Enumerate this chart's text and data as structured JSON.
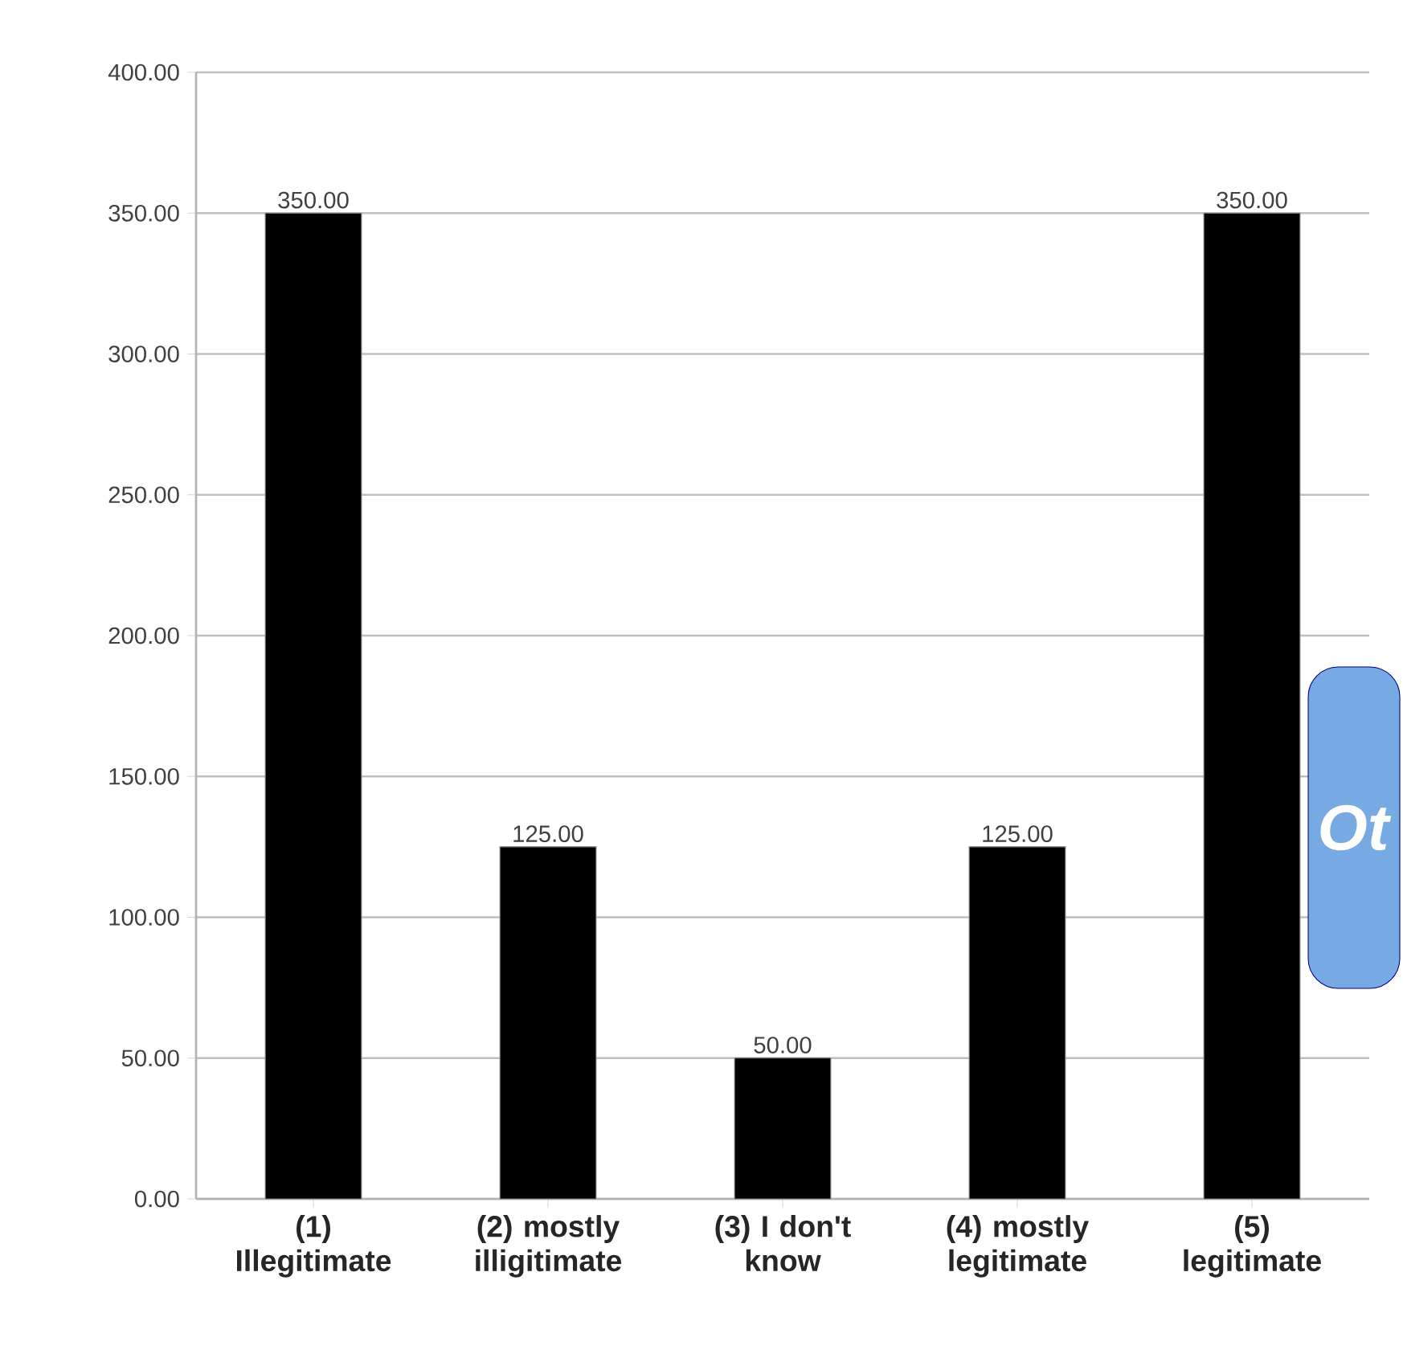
{
  "chart_data": {
    "type": "bar",
    "categories": [
      "(1) Illegitimate",
      "(2) mostly illigitimate",
      "(3) I don't know",
      "(4) mostly legitimate",
      "(5) legitimate"
    ],
    "values": [
      350,
      125,
      50,
      125,
      350
    ],
    "value_labels": [
      "350.00",
      "125.00",
      "50.00",
      "125.00",
      "350.00"
    ],
    "color": "#000000",
    "ylim": [
      0,
      400
    ],
    "yticks": [
      {
        "value": 0,
        "label": "0.00"
      },
      {
        "value": 50,
        "label": "50.00"
      },
      {
        "value": 100,
        "label": "100.00"
      },
      {
        "value": 150,
        "label": "150.00"
      },
      {
        "value": 200,
        "label": "200.00"
      },
      {
        "value": 250,
        "label": "250.00"
      },
      {
        "value": 300,
        "label": "300.00"
      },
      {
        "value": 350,
        "label": "350.00"
      },
      {
        "value": 400,
        "label": "400.00"
      }
    ],
    "grid": "y",
    "annotations": [
      "Ot"
    ]
  }
}
